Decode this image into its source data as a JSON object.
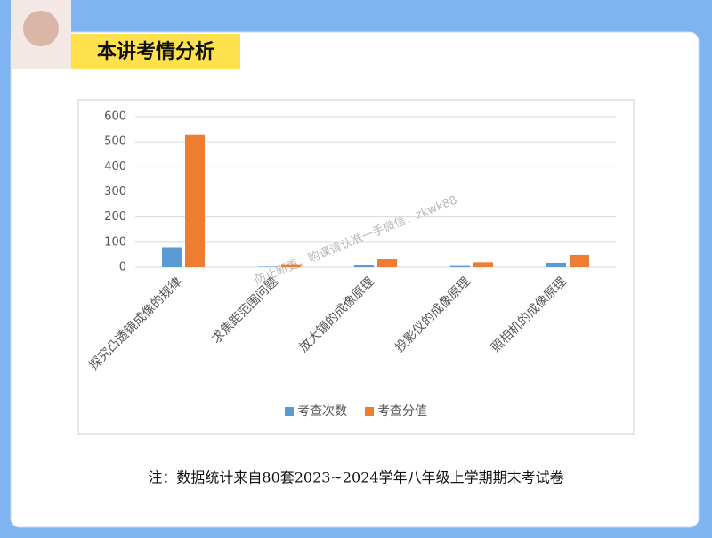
{
  "header": {
    "title": "本讲考情分析"
  },
  "chart_data": {
    "type": "bar",
    "categories": [
      "探究凸透镜成像的规律",
      "求焦距范围问题",
      "放大镜的成像原理",
      "投影仪的成像原理",
      "照相机的成像原理"
    ],
    "series": [
      {
        "name": "考查次数",
        "color": "#5b9bd5",
        "values": [
          80,
          2,
          10,
          5,
          18
        ]
      },
      {
        "name": "考查分值",
        "color": "#ed7d31",
        "values": [
          530,
          12,
          32,
          20,
          50
        ]
      }
    ],
    "ylim": [
      0,
      600
    ],
    "yticks": [
      0,
      100,
      200,
      300,
      400,
      500,
      600
    ],
    "grid": true,
    "legend": "bottom"
  },
  "note": "注：数据统计来自80套2023~2024学年八年级上学期期末考试卷",
  "watermark": "防止断更，购课请认准一手微信：zkwk88"
}
